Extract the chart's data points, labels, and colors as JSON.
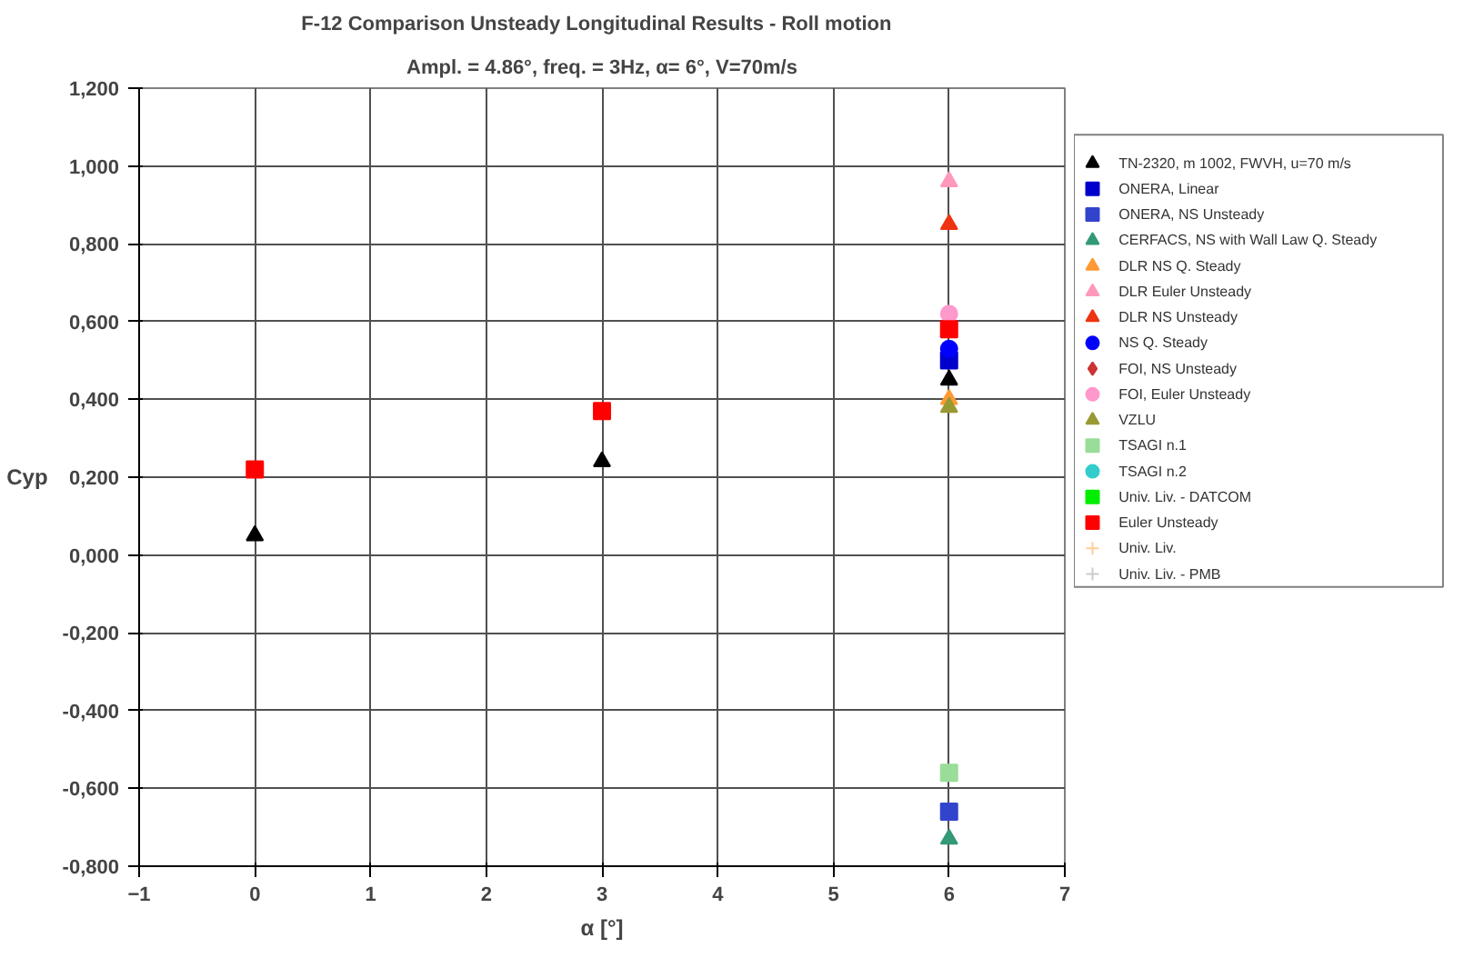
{
  "chart_data": {
    "type": "scatter",
    "title": "F-12 Comparison Unsteady Longitudinal Results  -  Roll motion",
    "subtitle": "Ampl. = 4.86°, freq. = 3Hz, α= 6°, V=70m/s",
    "xlabel": "α [°]",
    "ylabel": "Cyp",
    "xlim": [
      -1,
      7
    ],
    "xticks": [
      -1,
      0,
      1,
      2,
      3,
      4,
      5,
      6,
      7
    ],
    "ylim": [
      -0.8,
      1.2
    ],
    "yticks": [
      {
        "value": -0.8,
        "label": "-0,800"
      },
      {
        "value": -0.6,
        "label": "-0,600"
      },
      {
        "value": -0.4,
        "label": "-0,400"
      },
      {
        "value": -0.2,
        "label": "-0,200"
      },
      {
        "value": 0,
        "label": "0,000"
      },
      {
        "value": 0.2,
        "label": "0,200"
      },
      {
        "value": 0.4,
        "label": "0,400"
      },
      {
        "value": 0.6,
        "label": "0,600"
      },
      {
        "value": 0.8,
        "label": "0,800"
      },
      {
        "value": 1.0,
        "label": "1,000"
      },
      {
        "value": 1.2,
        "label": "1,200"
      }
    ],
    "grid": true,
    "legend": "right",
    "series": [
      {
        "name": "TN-2320, m 1002, FWVH, u=70 m/s",
        "color": "#000000",
        "marker": "triangle",
        "x": [
          0,
          3,
          6
        ],
        "values": [
          0.05,
          0.24,
          0.45
        ]
      },
      {
        "name": "ONERA, Linear",
        "color": "#0000cc",
        "marker": "square",
        "x": [
          6
        ],
        "values": [
          0.5
        ]
      },
      {
        "name": "ONERA, NS Unsteady",
        "color": "#3344cc",
        "marker": "square",
        "x": [
          6
        ],
        "values": [
          -0.66
        ]
      },
      {
        "name": "CERFACS, NS with Wall Law Q. Steady",
        "color": "#339977",
        "marker": "triangle",
        "x": [
          6
        ],
        "values": [
          -0.73
        ]
      },
      {
        "name": "DLR NS Q. Steady",
        "color": "#ff9933",
        "marker": "triangle",
        "x": [
          6
        ],
        "values": [
          0.4
        ]
      },
      {
        "name": "DLR Euler Unsteady",
        "color": "#ff99bb",
        "marker": "triangle",
        "x": [
          6
        ],
        "values": [
          0.96
        ]
      },
      {
        "name": "DLR NS Unsteady",
        "color": "#ee3311",
        "marker": "triangle",
        "x": [
          6
        ],
        "values": [
          0.85
        ]
      },
      {
        "name": "NS Q. Steady",
        "color": "#0000ff",
        "marker": "circle",
        "x": [
          6
        ],
        "values": [
          0.53
        ]
      },
      {
        "name": "FOI, NS Unsteady",
        "color": "#cc3333",
        "marker": "diamond"
      },
      {
        "name": "FOI, Euler Unsteady",
        "color": "#ff99cc",
        "marker": "circle",
        "x": [
          6
        ],
        "values": [
          0.62
        ]
      },
      {
        "name": "VZLU",
        "color": "#999933",
        "marker": "triangle",
        "x": [
          6
        ],
        "values": [
          0.38
        ]
      },
      {
        "name": "TSAGI n.1",
        "color": "#99dd99",
        "marker": "square",
        "x": [
          6
        ],
        "values": [
          -0.56
        ]
      },
      {
        "name": "TSAGI n.2",
        "color": "#33cccc",
        "marker": "circle"
      },
      {
        "name": "Univ. Liv. - DATCOM",
        "color": "#00ee00",
        "marker": "square"
      },
      {
        "name": "Euler Unsteady",
        "color": "#ff0000",
        "marker": "square",
        "x": [
          0,
          3,
          6
        ],
        "values": [
          0.22,
          0.37,
          0.58
        ]
      },
      {
        "name": "Univ. Liv.",
        "color": "#ffcc99",
        "marker": "cross"
      },
      {
        "name": "Univ. Liv. - PMB",
        "color": "#cccccc",
        "marker": "cross"
      }
    ]
  }
}
